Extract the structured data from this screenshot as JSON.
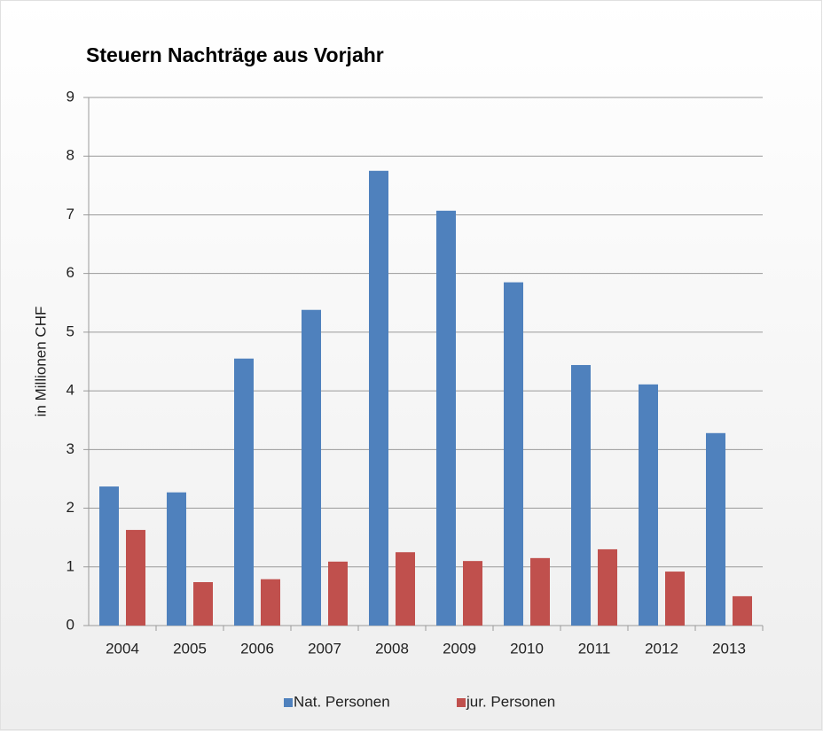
{
  "chart_data": {
    "type": "bar",
    "title": "Steuern Nachträge aus Vorjahr",
    "y_label": "in Millionen CHF",
    "categories": [
      "2004",
      "2005",
      "2006",
      "2007",
      "2008",
      "2009",
      "2010",
      "2011",
      "2012",
      "2013"
    ],
    "series": [
      {
        "name": "Nat. Personen",
        "color": "#4f81bd",
        "values": [
          2.37,
          2.27,
          4.55,
          5.38,
          7.75,
          7.07,
          5.85,
          4.44,
          4.11,
          3.28
        ]
      },
      {
        "name": "jur. Personen",
        "color": "#c0504d",
        "values": [
          1.63,
          0.74,
          0.79,
          1.09,
          1.25,
          1.1,
          1.15,
          1.3,
          0.92,
          0.5
        ]
      }
    ],
    "ylim": [
      0,
      9
    ],
    "yticks": [
      0,
      1,
      2,
      3,
      4,
      5,
      6,
      7,
      8,
      9
    ],
    "grid": true,
    "legend": "bottom"
  }
}
